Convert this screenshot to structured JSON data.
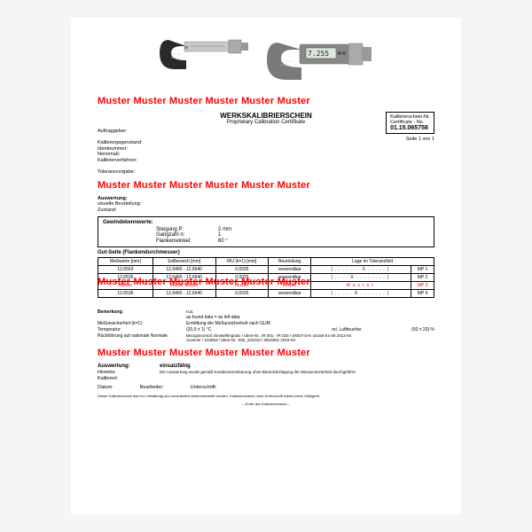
{
  "watermark": "Muster Muster Muster Muster Muster Muster",
  "watermark2": "Muster Muster  Muster Muster Muster Muster",
  "header": {
    "title": "WERKSKALIBRIERSCHEIN",
    "subtitle": "Proprietary Calibration Certifikate",
    "cert_label": "Kalibrierschein-Nr.",
    "cert_label2": "Certificate - No.",
    "cert_no": "01.15.065758",
    "page": "Seite 1 von 1"
  },
  "fields1": {
    "auftraggeber": "Auftraggeber:",
    "gegenstand": "Kalibriergegenstand:",
    "ident": "Identnummer:",
    "nennmass": "Nennmaß:",
    "verfahren": "Kalibrierverfahren:"
  },
  "fields2": {
    "toleranz": "Toleranzvorgabe:",
    "auswertung": "Auswertung:",
    "visuelle": "visuelle Beurteilung:",
    "zustand": "Zustand:"
  },
  "gewinde": {
    "title": "Gewindekennwerte:",
    "r1_label": "Steigung P:",
    "r1_val": "2 mm",
    "r2_label": "Gangzahl n:",
    "r2_val": "1",
    "r3_label": "Flankenwinkel:",
    "r3_val": "60 °"
  },
  "gut": {
    "title": "Gut-Seite (Flankendurchmesser)",
    "headers": [
      "Meßwerte [mm]",
      "Sollbereich [mm]",
      "MU (k=1) [mm]",
      "Beurteilung",
      "Lage im Toleranzfeld"
    ],
    "rows": [
      [
        "12,6563",
        "12,6460 - 12,6640",
        "0,0025",
        "verwendbar",
        "|.......X.....|",
        "MP 1"
      ],
      [
        "12,6526",
        "12,6460 - 12,6640",
        "0,0025",
        "verwendbar",
        "|....X........|",
        "MP 2"
      ],
      [
        "Muster",
        "Muster Muster",
        "Muster",
        "Muster",
        "Muster",
        "MP 3"
      ],
      [
        "12,6536",
        "12,6460 - 12,6640",
        "0,0025",
        "verwendbar",
        "|.....X.......|",
        "MP 4"
      ]
    ]
  },
  "bemerkung": {
    "title": "Bemerkung:",
    "val": "n.a.\nas found data = as left data",
    "mu_label": "Meßunsicherheit (k=1):",
    "mu_val": "Ermittlung der Meßunsicherheit nach GUM",
    "temp_label": "Temperatur:",
    "temp_val": "(20,0 ± 1) °C",
    "hum_label": "rel. Luftfeuchte:",
    "hum_val": "(50 ± 20) %",
    "ruck_label": "Rückführung auf nationale Normale:",
    "ruck_val": "Bezugsnormal: Einstellringsatz / Ident-Nr.: IR 001 - IR 020 / SMGT-D-K-15166-01-00 2013-04\nScanner / 103553 / Ident-Nr.: EW_101010 / 2815601 2015-03"
  },
  "result": {
    "label": "Auswertung:",
    "value": "einsatzfähig",
    "hinweis_label": "Hinweis:",
    "hinweis_val": "Die Auswertung wurde gemäß Kundenvereinbarung ohne Berücksichtigung der Messunsicherheit durchgeführt.",
    "kalibriert_label": "Kalibriert:",
    "datum": "Datum:",
    "bearbeiter": "Bearbeiter:",
    "unterschrift": "Unterschrift:",
    "fine": "Dieser Kalibrierschein darf nur vollständig und unverändert weiterverbreitet werden. Kalibrierscheine ohne Unterschrift haben keine Gültigkeit.",
    "fine2": "---Ende des Kalibrierscheins---"
  },
  "colors": {
    "watermark": "#ff0000",
    "bg": "#f5f5f5",
    "page": "#ffffff"
  }
}
